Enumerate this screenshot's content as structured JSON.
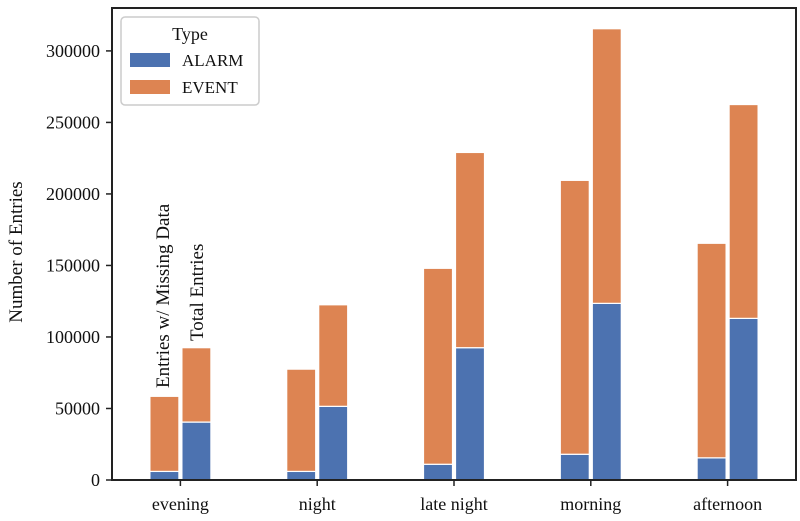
{
  "chart_data": {
    "type": "bar",
    "stacked": true,
    "title": "",
    "xlabel": "",
    "ylabel": "Number of Entries",
    "ylim": [
      0,
      330000
    ],
    "yticks": [
      0,
      50000,
      100000,
      150000,
      200000,
      250000,
      300000
    ],
    "ytick_labels": [
      "0",
      "50000",
      "100000",
      "150000",
      "200000",
      "250000",
      "300000"
    ],
    "categories": [
      "evening",
      "night",
      "late night",
      "morning",
      "afternoon"
    ],
    "bar_groups": [
      "Entries w/ Missing Data",
      "Total Entries"
    ],
    "series": [
      {
        "name": "ALARM",
        "color": "#4c72b0",
        "values": {
          "Entries w/ Missing Data": [
            6000,
            6000,
            11000,
            18000,
            15500
          ],
          "Total Entries": [
            40500,
            51500,
            92500,
            123500,
            113000
          ]
        }
      },
      {
        "name": "EVENT",
        "color": "#dd8452",
        "values": {
          "Entries w/ Missing Data": [
            52500,
            71500,
            137000,
            191500,
            150000
          ],
          "Total Entries": [
            52000,
            71000,
            136500,
            192000,
            149500
          ]
        }
      }
    ],
    "legend": {
      "title": "Type",
      "position": "top-left",
      "entries": [
        "ALARM",
        "EVENT"
      ]
    },
    "annotations": [
      "Entries w/ Missing Data",
      "Total Entries"
    ]
  }
}
